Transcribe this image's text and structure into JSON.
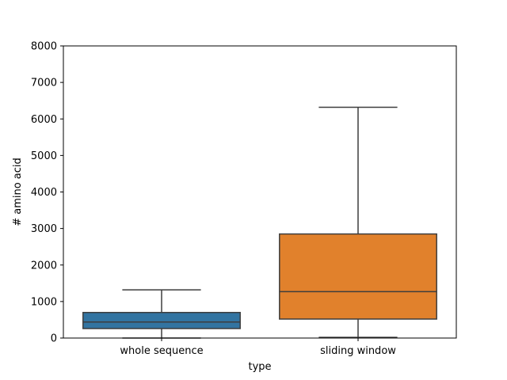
{
  "chart_data": {
    "type": "box",
    "title": "",
    "xlabel": "type",
    "ylabel": "# amino acid",
    "ylim": [
      0,
      8000
    ],
    "yticks": [
      0,
      1000,
      2000,
      3000,
      4000,
      5000,
      6000,
      7000,
      8000
    ],
    "grid": false,
    "categories": [
      "whole sequence",
      "sliding window"
    ],
    "boxes": [
      {
        "category": "whole sequence",
        "whisker_low": 0,
        "q1": 260,
        "median": 440,
        "q3": 700,
        "whisker_high": 1320,
        "color": "#3274a1"
      },
      {
        "category": "sliding window",
        "whisker_low": 20,
        "q1": 520,
        "median": 1270,
        "q3": 2850,
        "whisker_high": 6320,
        "color": "#e1812c"
      }
    ],
    "edge_color": "#3d3d3d"
  }
}
